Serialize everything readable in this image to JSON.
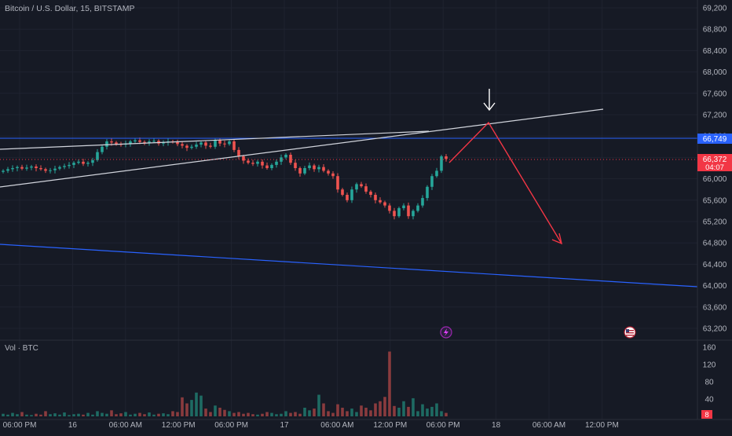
{
  "header": {
    "symbol": "Bitcoin / U.S. Dollar, 15, BITSTAMP"
  },
  "volume_pane": {
    "label": "Vol · BTC"
  },
  "colors": {
    "background": "#161a25",
    "up": "#26a69a",
    "down": "#ef5350",
    "vol_up": "#1e6b63",
    "vol_down": "#8a3b3e",
    "trendline": "#d1d4dc",
    "blue_line": "#2962ff",
    "arrow_red": "#f23645",
    "text": "#b2b5be"
  },
  "price_axis": {
    "ticks": [
      "69,200",
      "68,800",
      "68,400",
      "68,000",
      "67,600",
      "67,200",
      "66,800",
      "66,400",
      "66,000",
      "65,600",
      "65,200",
      "64,800",
      "64,400",
      "64,000",
      "63,600",
      "63,200"
    ],
    "hline_label": "66,749",
    "last_price": "66,372",
    "countdown": "04:07"
  },
  "volume_axis": {
    "ticks": [
      "160",
      "120",
      "80",
      "40"
    ],
    "last_volume": "8"
  },
  "time_axis": [
    "06:00 PM",
    "16",
    "06:00 AM",
    "12:00 PM",
    "06:00 PM",
    "17",
    "06:00 AM",
    "12:00 PM",
    "06:00 PM",
    "18",
    "06:00 AM",
    "12:00 PM"
  ],
  "chart_data": {
    "type": "candlestick",
    "symbol": "Bitcoin / U.S. Dollar",
    "interval": "15",
    "exchange": "BITSTAMP",
    "y_range": [
      63000,
      69400
    ],
    "last_price": 66372,
    "horizontal_line": 66749,
    "candles_close_path": [
      66150,
      66180,
      66200,
      66220,
      66190,
      66210,
      66230,
      66200,
      66180,
      66150,
      66160,
      66190,
      66220,
      66240,
      66260,
      66300,
      66320,
      66280,
      66300,
      66350,
      66500,
      66600,
      66700,
      66680,
      66650,
      66640,
      66660,
      66700,
      66720,
      66690,
      66680,
      66700,
      66710,
      66660,
      66680,
      66700,
      66690,
      66650,
      66620,
      66580,
      66600,
      66640,
      66680,
      66620,
      66600,
      66720,
      66660,
      66650,
      66700,
      66540,
      66420,
      66340,
      66300,
      66280,
      66320,
      66250,
      66200,
      66260,
      66320,
      66400,
      66450,
      66300,
      66200,
      66100,
      66200,
      66250,
      66180,
      66220,
      66150,
      66100,
      66050,
      65800,
      65700,
      65600,
      65800,
      65900,
      65860,
      65760,
      65700,
      65600,
      65560,
      65500,
      65400,
      65300,
      65450,
      65500,
      65300,
      65400,
      65500,
      65640,
      65850,
      66050,
      66150,
      66420,
      66372
    ],
    "volume_levels": [
      6,
      4,
      8,
      5,
      10,
      4,
      3,
      6,
      4,
      12,
      5,
      7,
      4,
      9,
      3,
      5,
      6,
      4,
      8,
      4,
      12,
      8,
      6,
      14,
      5,
      7,
      10,
      4,
      6,
      8,
      5,
      9,
      4,
      6,
      7,
      5,
      12,
      10,
      44,
      30,
      38,
      55,
      48,
      18,
      10,
      25,
      20,
      15,
      12,
      8,
      10,
      6,
      8,
      5,
      4,
      6,
      10,
      8,
      5,
      6,
      12,
      8,
      10,
      6,
      20,
      14,
      18,
      50,
      30,
      12,
      8,
      28,
      20,
      12,
      18,
      10,
      25,
      20,
      14,
      30,
      35,
      45,
      150,
      24,
      20,
      35,
      22,
      42,
      12,
      28,
      18,
      22,
      30,
      12,
      8
    ],
    "drawings": [
      {
        "type": "trendline",
        "name": "rising-trendline-lower"
      },
      {
        "type": "trendline",
        "name": "rising-trendline-upper"
      },
      {
        "type": "horizontal_line",
        "price": 66749
      },
      {
        "type": "line",
        "name": "blue-lower-line"
      },
      {
        "type": "projection",
        "direction": "up-then-down",
        "target": 64600
      }
    ]
  }
}
